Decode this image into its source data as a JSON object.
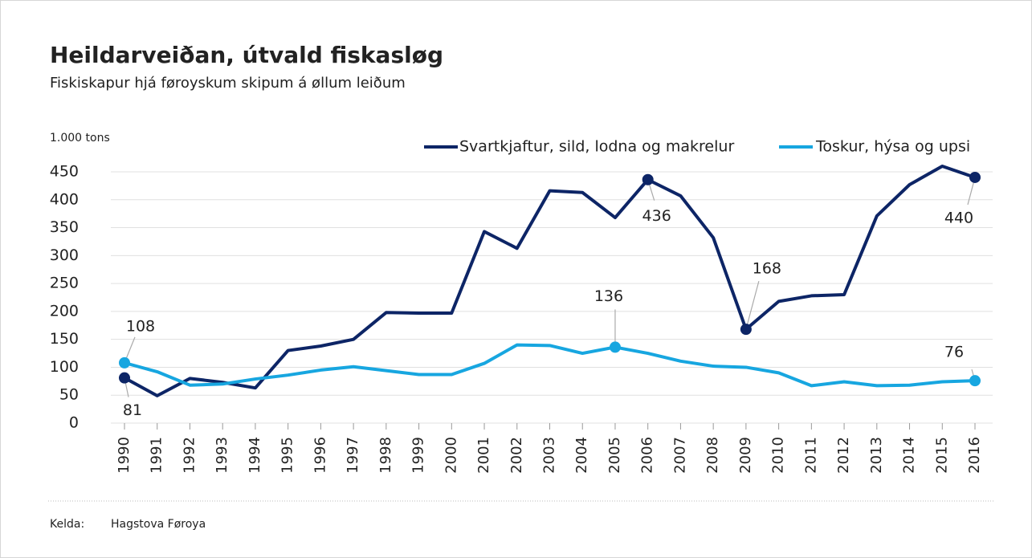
{
  "chart_data": {
    "type": "line",
    "title": "Heildarveiðan, útvald fiskasløg",
    "subtitle": "Fiskiskapur hjá føroyskum skipum á øllum leiðum",
    "y_axis_label": "1.000 tons",
    "categories": [
      "1990",
      "1991",
      "1992",
      "1993",
      "1994",
      "1995",
      "1996",
      "1997",
      "1998",
      "1999",
      "2000",
      "2001",
      "2002",
      "2003",
      "2004",
      "2005",
      "2006",
      "2007",
      "2008",
      "2009",
      "2010",
      "2011",
      "2012",
      "2013",
      "2014",
      "2015",
      "2016"
    ],
    "series": [
      {
        "name": "Svartkjaftur, sild, lodna og makrelur",
        "color": "#0d2566",
        "values": [
          81,
          49,
          80,
          73,
          63,
          130,
          138,
          150,
          198,
          197,
          197,
          343,
          313,
          416,
          413,
          368,
          436,
          407,
          332,
          168,
          218,
          228,
          230,
          371,
          427,
          460,
          440
        ],
        "labeled_points": [
          0,
          16,
          19,
          26
        ]
      },
      {
        "name": "Toskur, hýsa og upsi",
        "color": "#17a6e0",
        "values": [
          108,
          92,
          68,
          70,
          79,
          86,
          95,
          101,
          94,
          87,
          87,
          107,
          140,
          139,
          125,
          136,
          125,
          111,
          102,
          100,
          90,
          67,
          74,
          67,
          68,
          74,
          76
        ],
        "labeled_points": [
          0,
          15,
          26
        ]
      }
    ],
    "ylim": [
      0,
      450
    ],
    "yticks": [
      0,
      50,
      100,
      150,
      200,
      250,
      300,
      350,
      400,
      450
    ],
    "grid": true,
    "source_label": "Kelda:",
    "source": "Hagstova Føroya"
  }
}
